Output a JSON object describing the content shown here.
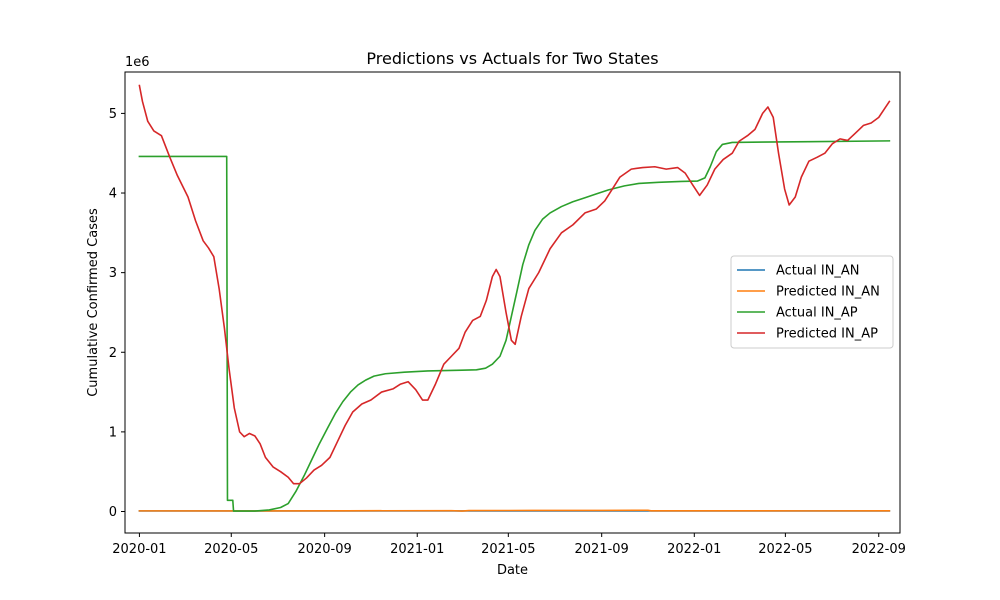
{
  "chart_data": {
    "type": "line",
    "title": "Predictions vs Actuals for Two States",
    "xlabel": "Date",
    "ylabel": "Cumulative Confirmed Cases",
    "y_offset_label": "1e6",
    "xlim": [
      "2019-12-13",
      "2022-09-29"
    ],
    "ylim": [
      -270000,
      5520000
    ],
    "x_ticks": [
      "2020-01-01",
      "2020-05-01",
      "2020-09-01",
      "2021-01-01",
      "2021-05-01",
      "2021-09-01",
      "2022-01-01",
      "2022-05-01",
      "2022-09-01"
    ],
    "x_tick_labels": [
      "2020-01",
      "2020-05",
      "2020-09",
      "2021-01",
      "2021-05",
      "2021-09",
      "2022-01",
      "2022-05",
      "2022-09"
    ],
    "y_ticks": [
      0,
      1000000,
      2000000,
      3000000,
      4000000,
      5000000
    ],
    "y_tick_labels": [
      "0",
      "1",
      "2",
      "3",
      "4",
      "5"
    ],
    "legend_position": "center-right",
    "grid": false,
    "series": [
      {
        "name": "Actual IN_AN",
        "color": "#1f77b4",
        "points": [
          [
            "2020-01-01",
            7000
          ],
          [
            "2020-06-01",
            7000
          ],
          [
            "2021-01-01",
            7500
          ],
          [
            "2021-06-01",
            7500
          ],
          [
            "2022-01-01",
            7600
          ],
          [
            "2022-09-15",
            7700
          ]
        ]
      },
      {
        "name": "Predicted IN_AN",
        "color": "#ff7f0e",
        "points": [
          [
            "2020-01-01",
            8000
          ],
          [
            "2020-06-01",
            7000
          ],
          [
            "2020-10-01",
            9000
          ],
          [
            "2021-02-15",
            11000
          ],
          [
            "2021-03-01",
            5000
          ],
          [
            "2021-03-10",
            12000
          ],
          [
            "2021-06-01",
            13000
          ],
          [
            "2021-09-01",
            14000
          ],
          [
            "2021-11-01",
            15000
          ],
          [
            "2021-11-05",
            9000
          ],
          [
            "2022-06-01",
            8000
          ],
          [
            "2022-09-15",
            9000
          ]
        ]
      },
      {
        "name": "Actual IN_AP",
        "color": "#2ca02c",
        "points": [
          [
            "2020-01-01",
            4460000
          ],
          [
            "2020-04-25",
            4460000
          ],
          [
            "2020-04-26",
            140000
          ],
          [
            "2020-05-03",
            140000
          ],
          [
            "2020-05-04",
            5000
          ],
          [
            "2020-06-01",
            5000
          ],
          [
            "2020-06-20",
            20000
          ],
          [
            "2020-07-05",
            50000
          ],
          [
            "2020-07-15",
            100000
          ],
          [
            "2020-07-25",
            250000
          ],
          [
            "2020-08-05",
            450000
          ],
          [
            "2020-08-15",
            650000
          ],
          [
            "2020-08-25",
            850000
          ],
          [
            "2020-09-05",
            1050000
          ],
          [
            "2020-09-15",
            1230000
          ],
          [
            "2020-09-25",
            1380000
          ],
          [
            "2020-10-05",
            1500000
          ],
          [
            "2020-10-15",
            1590000
          ],
          [
            "2020-10-25",
            1650000
          ],
          [
            "2020-11-05",
            1700000
          ],
          [
            "2020-11-20",
            1730000
          ],
          [
            "2020-12-15",
            1750000
          ],
          [
            "2021-01-15",
            1765000
          ],
          [
            "2021-03-01",
            1775000
          ],
          [
            "2021-03-20",
            1780000
          ],
          [
            "2021-04-01",
            1800000
          ],
          [
            "2021-04-10",
            1850000
          ],
          [
            "2021-04-20",
            1950000
          ],
          [
            "2021-04-28",
            2150000
          ],
          [
            "2021-05-05",
            2450000
          ],
          [
            "2021-05-12",
            2750000
          ],
          [
            "2021-05-20",
            3100000
          ],
          [
            "2021-05-28",
            3350000
          ],
          [
            "2021-06-05",
            3530000
          ],
          [
            "2021-06-15",
            3670000
          ],
          [
            "2021-06-25",
            3750000
          ],
          [
            "2021-07-10",
            3830000
          ],
          [
            "2021-07-25",
            3890000
          ],
          [
            "2021-08-10",
            3940000
          ],
          [
            "2021-08-25",
            3990000
          ],
          [
            "2021-09-10",
            4040000
          ],
          [
            "2021-10-01",
            4090000
          ],
          [
            "2021-10-20",
            4120000
          ],
          [
            "2021-11-15",
            4135000
          ],
          [
            "2021-12-15",
            4145000
          ],
          [
            "2022-01-05",
            4150000
          ],
          [
            "2022-01-15",
            4190000
          ],
          [
            "2022-01-22",
            4330000
          ],
          [
            "2022-01-30",
            4520000
          ],
          [
            "2022-02-07",
            4610000
          ],
          [
            "2022-02-20",
            4635000
          ],
          [
            "2022-04-01",
            4640000
          ],
          [
            "2022-06-01",
            4645000
          ],
          [
            "2022-09-15",
            4655000
          ]
        ]
      },
      {
        "name": "Predicted IN_AP",
        "color": "#d62728",
        "points": [
          [
            "2020-01-01",
            5350000
          ],
          [
            "2020-01-05",
            5150000
          ],
          [
            "2020-01-12",
            4900000
          ],
          [
            "2020-01-20",
            4780000
          ],
          [
            "2020-01-30",
            4720000
          ],
          [
            "2020-02-10",
            4450000
          ],
          [
            "2020-02-20",
            4220000
          ],
          [
            "2020-03-05",
            3950000
          ],
          [
            "2020-03-15",
            3650000
          ],
          [
            "2020-03-25",
            3400000
          ],
          [
            "2020-04-01",
            3310000
          ],
          [
            "2020-04-08",
            3200000
          ],
          [
            "2020-04-15",
            2800000
          ],
          [
            "2020-04-22",
            2300000
          ],
          [
            "2020-04-28",
            1800000
          ],
          [
            "2020-05-05",
            1300000
          ],
          [
            "2020-05-12",
            1000000
          ],
          [
            "2020-05-18",
            940000
          ],
          [
            "2020-05-25",
            980000
          ],
          [
            "2020-06-01",
            950000
          ],
          [
            "2020-06-08",
            850000
          ],
          [
            "2020-06-15",
            680000
          ],
          [
            "2020-06-25",
            560000
          ],
          [
            "2020-07-05",
            500000
          ],
          [
            "2020-07-15",
            430000
          ],
          [
            "2020-07-22",
            350000
          ],
          [
            "2020-07-30",
            350000
          ],
          [
            "2020-08-08",
            420000
          ],
          [
            "2020-08-18",
            520000
          ],
          [
            "2020-08-28",
            580000
          ],
          [
            "2020-09-08",
            680000
          ],
          [
            "2020-09-18",
            880000
          ],
          [
            "2020-09-28",
            1080000
          ],
          [
            "2020-10-08",
            1250000
          ],
          [
            "2020-10-20",
            1350000
          ],
          [
            "2020-11-01",
            1400000
          ],
          [
            "2020-11-15",
            1500000
          ],
          [
            "2020-11-30",
            1540000
          ],
          [
            "2020-12-10",
            1600000
          ],
          [
            "2020-12-20",
            1630000
          ],
          [
            "2020-12-30",
            1530000
          ],
          [
            "2021-01-08",
            1400000
          ],
          [
            "2021-01-15",
            1400000
          ],
          [
            "2021-01-25",
            1600000
          ],
          [
            "2021-02-05",
            1850000
          ],
          [
            "2021-02-15",
            1950000
          ],
          [
            "2021-02-25",
            2050000
          ],
          [
            "2021-03-05",
            2250000
          ],
          [
            "2021-03-15",
            2400000
          ],
          [
            "2021-03-25",
            2450000
          ],
          [
            "2021-04-02",
            2650000
          ],
          [
            "2021-04-10",
            2950000
          ],
          [
            "2021-04-15",
            3040000
          ],
          [
            "2021-04-20",
            2950000
          ],
          [
            "2021-04-28",
            2500000
          ],
          [
            "2021-05-05",
            2150000
          ],
          [
            "2021-05-10",
            2100000
          ],
          [
            "2021-05-18",
            2450000
          ],
          [
            "2021-05-28",
            2800000
          ],
          [
            "2021-06-10",
            3000000
          ],
          [
            "2021-06-25",
            3300000
          ],
          [
            "2021-07-10",
            3500000
          ],
          [
            "2021-07-25",
            3600000
          ],
          [
            "2021-08-10",
            3750000
          ],
          [
            "2021-08-25",
            3800000
          ],
          [
            "2021-09-05",
            3900000
          ],
          [
            "2021-09-15",
            4050000
          ],
          [
            "2021-09-25",
            4200000
          ],
          [
            "2021-10-10",
            4300000
          ],
          [
            "2021-10-25",
            4320000
          ],
          [
            "2021-11-10",
            4330000
          ],
          [
            "2021-11-25",
            4300000
          ],
          [
            "2021-12-10",
            4320000
          ],
          [
            "2021-12-20",
            4250000
          ],
          [
            "2021-12-30",
            4100000
          ],
          [
            "2022-01-08",
            3970000
          ],
          [
            "2022-01-18",
            4100000
          ],
          [
            "2022-01-28",
            4300000
          ],
          [
            "2022-02-08",
            4420000
          ],
          [
            "2022-02-20",
            4500000
          ],
          [
            "2022-03-01",
            4650000
          ],
          [
            "2022-03-12",
            4720000
          ],
          [
            "2022-03-22",
            4800000
          ],
          [
            "2022-04-01",
            5000000
          ],
          [
            "2022-04-08",
            5080000
          ],
          [
            "2022-04-15",
            4950000
          ],
          [
            "2022-04-22",
            4500000
          ],
          [
            "2022-04-30",
            4050000
          ],
          [
            "2022-05-06",
            3850000
          ],
          [
            "2022-05-14",
            3950000
          ],
          [
            "2022-05-22",
            4200000
          ],
          [
            "2022-06-01",
            4400000
          ],
          [
            "2022-06-12",
            4450000
          ],
          [
            "2022-06-22",
            4500000
          ],
          [
            "2022-07-02",
            4620000
          ],
          [
            "2022-07-12",
            4680000
          ],
          [
            "2022-07-22",
            4660000
          ],
          [
            "2022-08-01",
            4750000
          ],
          [
            "2022-08-12",
            4850000
          ],
          [
            "2022-08-22",
            4880000
          ],
          [
            "2022-09-01",
            4950000
          ],
          [
            "2022-09-08",
            5050000
          ],
          [
            "2022-09-15",
            5150000
          ]
        ]
      }
    ]
  }
}
